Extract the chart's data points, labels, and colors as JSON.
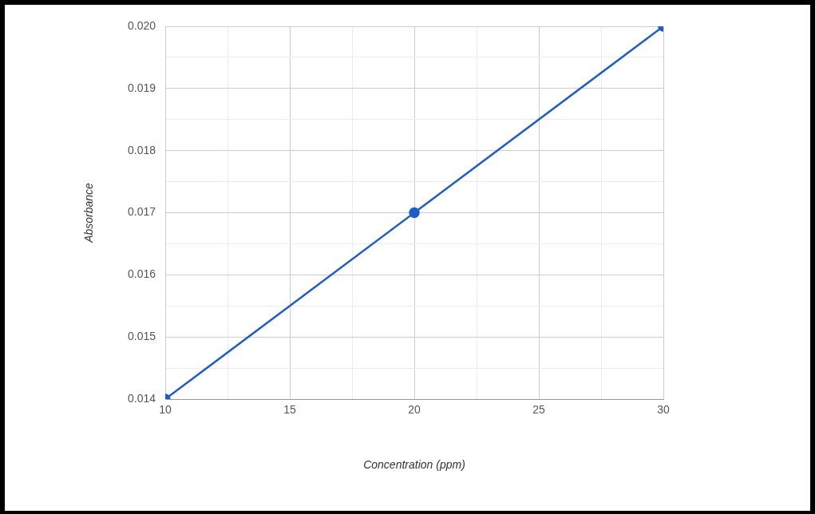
{
  "chart_data": {
    "type": "line",
    "xlabel": "Concentration (ppm)",
    "ylabel": "Absorbance",
    "x": [
      10,
      20,
      30
    ],
    "series": [
      {
        "color": "#1c5fc9",
        "values": [
          0.014,
          0.017,
          0.02
        ]
      }
    ],
    "xlim": [
      10,
      30
    ],
    "xticks": [
      10,
      {
        "value": 12.5,
        "label": null
      },
      15,
      {
        "value": 17.5,
        "label": null
      },
      20,
      {
        "value": 22.5,
        "label": null
      },
      25,
      {
        "value": 27.5,
        "label": null
      },
      30
    ],
    "ylim": [
      0.014,
      0.02
    ],
    "yticks": [
      {
        "value": 0.014,
        "label": "0.014"
      },
      {
        "value": 0.0145,
        "label": null
      },
      {
        "value": 0.015,
        "label": "0.015"
      },
      {
        "value": 0.0155,
        "label": null
      },
      {
        "value": 0.016,
        "label": "0.016"
      },
      {
        "value": 0.0165,
        "label": null
      },
      {
        "value": 0.017,
        "label": "0.017"
      },
      {
        "value": 0.0175,
        "label": null
      },
      {
        "value": 0.018,
        "label": "0.018"
      },
      {
        "value": 0.0185,
        "label": null
      },
      {
        "value": 0.019,
        "label": "0.019"
      },
      {
        "value": 0.0195,
        "label": null
      },
      {
        "value": 0.02,
        "label": "0.020"
      }
    ],
    "grid": true,
    "marker": "circle",
    "line_style": "solid"
  }
}
